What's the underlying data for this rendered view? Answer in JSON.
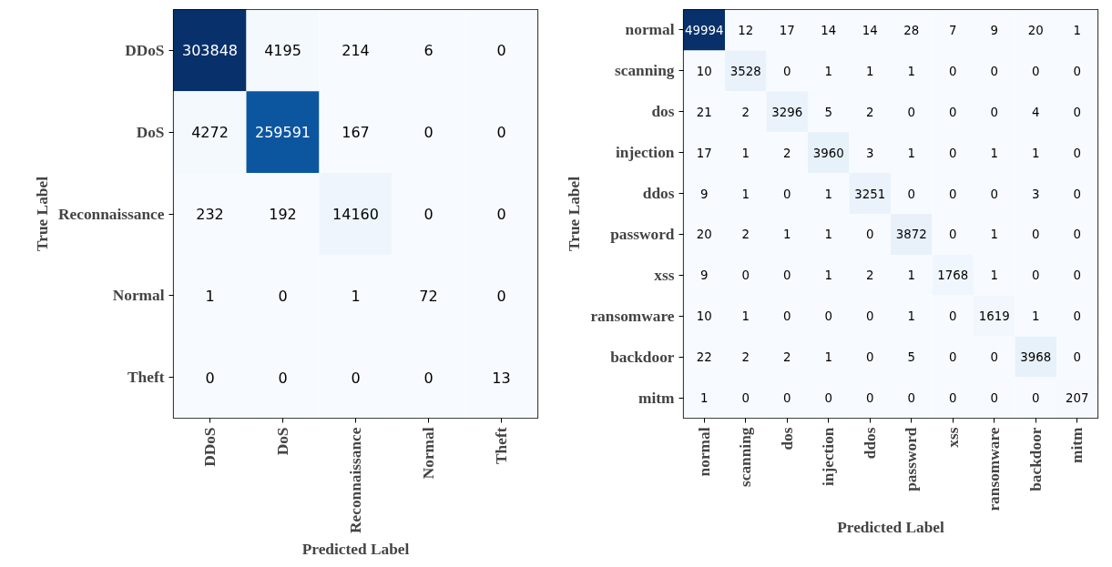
{
  "chart_data": [
    {
      "type": "heatmap",
      "xlabel": "Predicted Label",
      "ylabel": "True Label",
      "data_labels": true,
      "categories": [
        "DDoS",
        "DoS",
        "Reconnaissance",
        "Normal",
        "Theft"
      ],
      "y_categories": [
        "DDoS",
        "DoS",
        "Reconnaissance",
        "Normal",
        "Theft"
      ],
      "cells": [
        [
          303848,
          4195,
          214,
          6,
          0
        ],
        [
          4272,
          259591,
          167,
          0,
          0
        ],
        [
          232,
          192,
          14160,
          0,
          0
        ],
        [
          1,
          0,
          1,
          72,
          0
        ],
        [
          0,
          0,
          0,
          0,
          13
        ]
      ]
    },
    {
      "type": "heatmap",
      "xlabel": "Predicted Label",
      "ylabel": "True Label",
      "data_labels": true,
      "categories": [
        "normal",
        "scanning",
        "dos",
        "injection",
        "ddos",
        "password",
        "xss",
        "ransomware",
        "backdoor",
        "mitm"
      ],
      "y_categories": [
        "normal",
        "scanning",
        "dos",
        "injection",
        "ddos",
        "password",
        "xss",
        "ransomware",
        "backdoor",
        "mitm"
      ],
      "cells": [
        [
          49994,
          12,
          17,
          14,
          14,
          28,
          7,
          9,
          20,
          1
        ],
        [
          10,
          3528,
          0,
          1,
          1,
          1,
          0,
          0,
          0,
          0
        ],
        [
          21,
          2,
          3296,
          5,
          2,
          0,
          0,
          0,
          4,
          0
        ],
        [
          17,
          1,
          2,
          3960,
          3,
          1,
          0,
          1,
          1,
          0
        ],
        [
          9,
          1,
          0,
          1,
          3251,
          0,
          0,
          0,
          3,
          0
        ],
        [
          20,
          2,
          1,
          1,
          0,
          3872,
          0,
          1,
          0,
          0
        ],
        [
          9,
          0,
          0,
          1,
          2,
          1,
          1768,
          1,
          0,
          0
        ],
        [
          10,
          1,
          0,
          0,
          0,
          1,
          0,
          1619,
          1,
          0
        ],
        [
          22,
          2,
          2,
          1,
          0,
          5,
          0,
          0,
          3968,
          0
        ],
        [
          1,
          0,
          0,
          0,
          0,
          0,
          0,
          0,
          0,
          207
        ]
      ]
    }
  ]
}
